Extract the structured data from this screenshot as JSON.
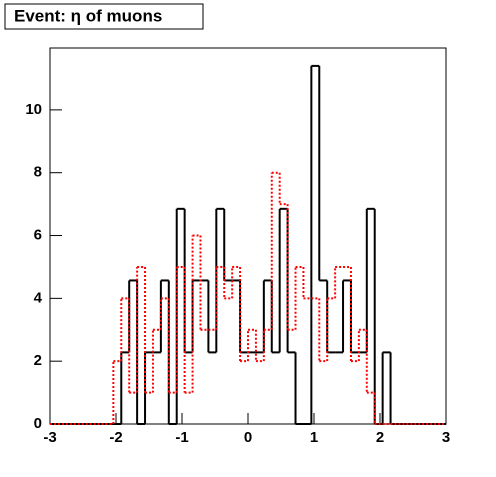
{
  "chart_data": {
    "type": "histogram",
    "title": "Event: η of muons",
    "bins": [
      -3,
      -2.88,
      -2.76,
      -2.64,
      -2.52,
      -2.4,
      -2.28,
      -2.16,
      -2.04,
      -1.92,
      -1.8,
      -1.68,
      -1.56,
      -1.44,
      -1.32,
      -1.2,
      -1.08,
      -0.96,
      -0.84,
      -0.72,
      -0.6,
      -0.48,
      -0.36,
      -0.24,
      -0.12,
      0,
      0.12,
      0.24,
      0.36,
      0.48,
      0.6,
      0.72,
      0.84,
      0.96,
      1.08,
      1.2,
      1.32,
      1.44,
      1.56,
      1.68,
      1.8,
      1.92,
      2.04,
      2.16,
      2.28,
      2.4,
      2.52,
      2.64,
      2.76,
      2.88,
      3
    ],
    "series": [
      {
        "color": "#000000",
        "line_style": "solid",
        "values": [
          0,
          0,
          0,
          0,
          0,
          0,
          0,
          0,
          0,
          2.28,
          4.57,
          0,
          2.28,
          2.28,
          4.57,
          0,
          6.85,
          2.28,
          4.57,
          4.57,
          2.28,
          6.85,
          4.57,
          4.57,
          2.28,
          2.28,
          2.28,
          4.57,
          2.28,
          6.85,
          2.28,
          0,
          0,
          11.4,
          4.57,
          2.28,
          2.28,
          4.57,
          2.28,
          2.28,
          6.85,
          0,
          2.28,
          0,
          0,
          0,
          0,
          0,
          0,
          0
        ]
      },
      {
        "color": "#ff0000",
        "line_style": "dotted",
        "values": [
          0,
          0,
          0,
          0,
          0,
          0,
          0,
          0,
          2,
          4,
          1,
          5,
          1,
          3,
          4,
          1,
          5,
          1,
          6,
          3,
          3,
          5,
          4,
          5,
          2,
          3,
          2,
          3,
          8,
          7,
          3,
          5,
          4,
          4,
          2,
          4,
          5,
          5,
          2,
          3,
          1,
          0,
          0,
          0,
          0,
          0,
          0,
          0,
          0,
          0
        ]
      }
    ],
    "xlim": [
      -3,
      3
    ],
    "xticks": [
      -3,
      -2,
      -1,
      0,
      1,
      2,
      3
    ],
    "ylim": [
      0,
      11.97
    ],
    "yticks": [
      0,
      2,
      4,
      6,
      8,
      10
    ]
  }
}
